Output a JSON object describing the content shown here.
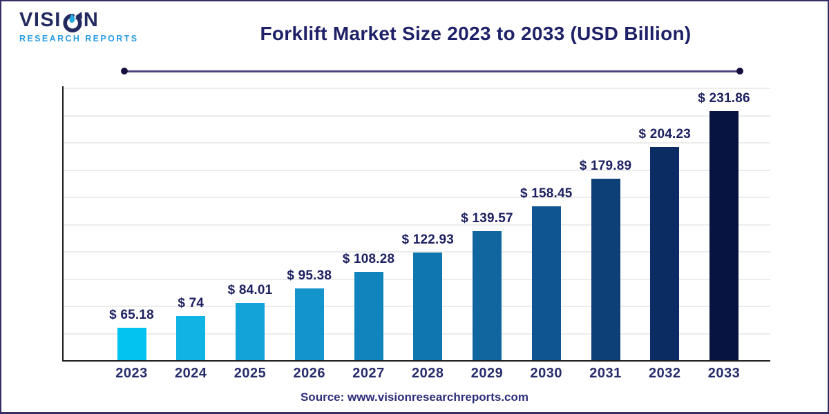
{
  "page": {
    "background": "#FFFFFF",
    "border_color": "#342D66"
  },
  "branding": {
    "logo_text": "VISION",
    "logo_subtext": "RESEARCH REPORTS",
    "logo_text_color": "#232A60",
    "logo_subtext_color": "#2A9DE4",
    "logo_drop_color": "#29A9E0"
  },
  "header": {
    "title": "Forklift Market Size 2023 to 2033 (USD Billion)",
    "title_color": "#1E2167",
    "divider_color": "#4B4380",
    "divider_dot_color": "#150F3E"
  },
  "chart_data": {
    "type": "bar",
    "title": "Forklift Market Size 2023 to 2033 (USD Billion)",
    "categories": [
      "2023",
      "2024",
      "2025",
      "2026",
      "2027",
      "2028",
      "2029",
      "2030",
      "2031",
      "2032",
      "2033"
    ],
    "series": [
      {
        "name": "Forklift Market Size (USD Billion)",
        "values": [
          65.18,
          74,
          84.01,
          95.38,
          108.28,
          122.93,
          139.57,
          158.45,
          179.89,
          204.23,
          231.86
        ]
      }
    ],
    "value_labels": [
      "$ 65.18",
      "$ 74",
      "$ 84.01",
      "$ 95.38",
      "$ 108.28",
      "$ 122.93",
      "$ 139.57",
      "$ 158.45",
      "$ 179.89",
      "$ 204.23",
      "$ 231.86"
    ],
    "bar_colors": [
      "#03C4F1",
      "#0FB4E4",
      "#12A3D8",
      "#1394CB",
      "#1284BD",
      "#1076AF",
      "#12669F",
      "#0F5591",
      "#0D4076",
      "#0A2C63",
      "#071340"
    ],
    "xlabel": "",
    "ylabel": "",
    "ylim": [
      40,
      250
    ],
    "grid": {
      "horizontal": true,
      "intervals": 10,
      "color": "#EDECEC",
      "y_tick_labels": "none"
    },
    "legend": "none",
    "axis_color": "#1C1C1C",
    "value_label_color": "#1D2060",
    "category_label_color": "#272C6B"
  },
  "footer": {
    "source": "Source: www.visionresearchreports.com",
    "source_color": "#2C2E7A"
  }
}
